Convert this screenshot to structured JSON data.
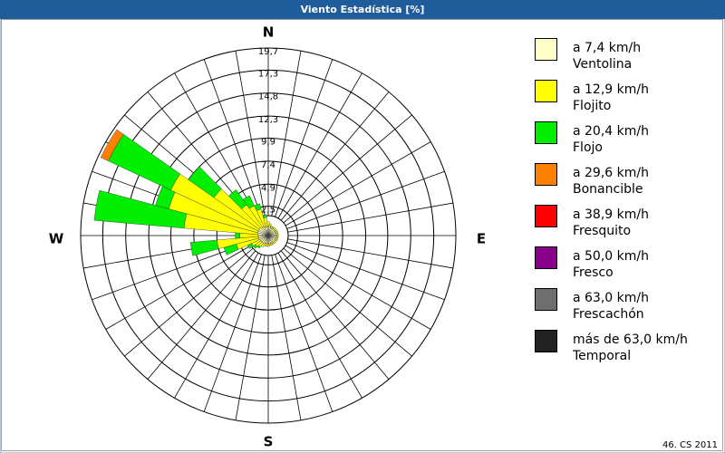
{
  "chart_data": {
    "type": "windrose",
    "title": "Viento Estadística [%]",
    "footer": "46. CS 2011",
    "compass": {
      "N": "N",
      "E": "E",
      "S": "S",
      "W": "W"
    },
    "categories": [
      null,
      null,
      null,
      null,
      null,
      null,
      null,
      null,
      null,
      null,
      null,
      null,
      null,
      null,
      null,
      null,
      null,
      null,
      null,
      null,
      null,
      null,
      null,
      null,
      null,
      null,
      null,
      null,
      null,
      null,
      null,
      null,
      null,
      null,
      null,
      null
    ],
    "rlim": [
      0,
      19.7
    ],
    "rticks": [
      {
        "value": 2.5,
        "label": "2,5"
      },
      {
        "value": 4.9,
        "label": "4,9"
      },
      {
        "value": 7.4,
        "label": "7,4"
      },
      {
        "value": 9.9,
        "label": "9,9"
      },
      {
        "value": 12.3,
        "label": "12,3"
      },
      {
        "value": 14.8,
        "label": "14,8"
      },
      {
        "value": 17.3,
        "label": "17,3"
      },
      {
        "value": 19.7,
        "label": "19,7"
      }
    ],
    "series": [
      {
        "name": "a 7,4 km/h",
        "description": "Ventolina",
        "color": "#ffffc8",
        "values": [
          0.3,
          0.3,
          0.2,
          0.2,
          0.2,
          0.2,
          0.2,
          0.2,
          0.2,
          0.2,
          0.2,
          0.2,
          0.2,
          0.2,
          0.2,
          0.2,
          0.2,
          0.2,
          0.2,
          0.2,
          0.2,
          0.3,
          0.3,
          0.3,
          0.3,
          0.4,
          0.4,
          0.4,
          0.5,
          0.5,
          0.5,
          0.5,
          0.4,
          0.4,
          0.3,
          0.3
        ]
      },
      {
        "name": "a 12,9 km/h",
        "description": "Flojito",
        "color": "#ffff00",
        "values": [
          0.5,
          0.3,
          0.2,
          0.2,
          0.2,
          0.2,
          0.2,
          0.2,
          0.2,
          0.2,
          0.2,
          0.2,
          0.2,
          0.2,
          0.2,
          0.2,
          0.2,
          0.2,
          0.3,
          0.3,
          0.3,
          0.4,
          0.5,
          0.7,
          1,
          2.5,
          4.5,
          2,
          8,
          10,
          10.5,
          6,
          3,
          2.5,
          2,
          1
        ]
      },
      {
        "name": "a 20,4 km/h",
        "description": "Flojo",
        "color": "#00ee00",
        "values": [
          0,
          0,
          0,
          0,
          0,
          0,
          0,
          0,
          0,
          0,
          0,
          0,
          0,
          0,
          0,
          0,
          0,
          0,
          0,
          0,
          0,
          0,
          0.2,
          0.3,
          0.5,
          1.4,
          2.9,
          0.5,
          9.8,
          1.5,
          7.5,
          3.4,
          2,
          1.2,
          0.6,
          0.3
        ]
      },
      {
        "name": "a 29,6 km/h",
        "description": "Bonancible",
        "color": "#ff8000",
        "values": [
          0,
          0,
          0,
          0,
          0,
          0,
          0,
          0,
          0,
          0,
          0,
          0,
          0,
          0,
          0,
          0,
          0,
          0,
          0,
          0,
          0,
          0,
          0,
          0,
          0,
          0,
          0,
          0,
          0,
          0,
          0.9,
          0,
          0,
          0,
          0,
          0
        ]
      },
      {
        "name": "a 38,9 km/h",
        "description": "Fresquito",
        "color": "#ff0000",
        "values": [
          0,
          0,
          0,
          0,
          0,
          0,
          0,
          0,
          0,
          0,
          0,
          0,
          0,
          0,
          0,
          0,
          0,
          0,
          0,
          0,
          0,
          0,
          0,
          0,
          0,
          0,
          0,
          0,
          0,
          0,
          0,
          0,
          0,
          0,
          0,
          0
        ]
      },
      {
        "name": "a 50,0 km/h",
        "description": "Fresco",
        "color": "#8b008b",
        "values": [
          0,
          0,
          0,
          0,
          0,
          0,
          0,
          0,
          0,
          0,
          0,
          0,
          0,
          0,
          0,
          0,
          0,
          0,
          0,
          0,
          0,
          0,
          0,
          0,
          0,
          0,
          0,
          0,
          0,
          0,
          0,
          0,
          0,
          0,
          0,
          0
        ]
      },
      {
        "name": "a 63,0 km/h",
        "description": "Frescachón",
        "color": "#6e6e6e",
        "values": [
          0,
          0,
          0,
          0,
          0,
          0,
          0,
          0,
          0,
          0,
          0,
          0,
          0,
          0,
          0,
          0,
          0,
          0,
          0,
          0,
          0,
          0,
          0,
          0,
          0,
          0,
          0,
          0,
          0,
          0,
          0,
          0,
          0,
          0,
          0,
          0
        ]
      },
      {
        "name": "más de 63,0 km/h",
        "description": "Temporal",
        "color": "#222222",
        "values": [
          0,
          0,
          0,
          0,
          0,
          0,
          0,
          0,
          0,
          0,
          0,
          0,
          0,
          0,
          0,
          0,
          0,
          0,
          0,
          0,
          0,
          0,
          0,
          0,
          0,
          0,
          0,
          0,
          0,
          0,
          0,
          0,
          0,
          0,
          0,
          0
        ]
      }
    ]
  }
}
